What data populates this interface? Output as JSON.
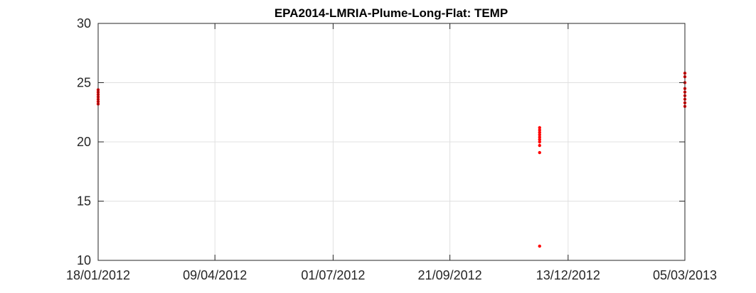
{
  "chart_data": {
    "type": "scatter",
    "title": "EPA2014-LMRIA-Plume-Long-Flat: TEMP",
    "xlabel": "",
    "ylabel": "",
    "x_type": "date",
    "xlim": [
      "2012-01-18",
      "2013-03-05"
    ],
    "ylim": [
      10,
      30
    ],
    "x_ticks": [
      "2012-01-18",
      "2012-04-09",
      "2012-07-01",
      "2012-09-21",
      "2012-12-13",
      "2013-03-05"
    ],
    "x_tick_labels": [
      "18/01/2012",
      "09/04/2012",
      "01/07/2012",
      "21/09/2012",
      "13/12/2012",
      "05/03/2013"
    ],
    "y_ticks": [
      10,
      15,
      20,
      25,
      30
    ],
    "y_tick_labels": [
      "10",
      "15",
      "20",
      "25",
      "30"
    ],
    "grid": true,
    "marker_color": "#ff0000",
    "series": [
      {
        "name": "TEMP",
        "points": [
          {
            "x": "2012-01-18",
            "y": 23.2
          },
          {
            "x": "2012-01-18",
            "y": 23.4
          },
          {
            "x": "2012-01-18",
            "y": 23.6
          },
          {
            "x": "2012-01-18",
            "y": 23.8
          },
          {
            "x": "2012-01-18",
            "y": 24.0
          },
          {
            "x": "2012-01-18",
            "y": 24.2
          },
          {
            "x": "2012-01-18",
            "y": 24.4
          },
          {
            "x": "2012-11-23",
            "y": 11.2
          },
          {
            "x": "2012-11-23",
            "y": 19.1
          },
          {
            "x": "2012-11-23",
            "y": 19.7
          },
          {
            "x": "2012-11-23",
            "y": 20.0
          },
          {
            "x": "2012-11-23",
            "y": 20.2
          },
          {
            "x": "2012-11-23",
            "y": 20.4
          },
          {
            "x": "2012-11-23",
            "y": 20.6
          },
          {
            "x": "2012-11-23",
            "y": 20.8
          },
          {
            "x": "2012-11-23",
            "y": 21.0
          },
          {
            "x": "2012-11-23",
            "y": 21.2
          },
          {
            "x": "2013-03-05",
            "y": 23.0
          },
          {
            "x": "2013-03-05",
            "y": 23.3
          },
          {
            "x": "2013-03-05",
            "y": 23.6
          },
          {
            "x": "2013-03-05",
            "y": 23.9
          },
          {
            "x": "2013-03-05",
            "y": 24.2
          },
          {
            "x": "2013-03-05",
            "y": 24.5
          },
          {
            "x": "2013-03-05",
            "y": 25.0
          },
          {
            "x": "2013-03-05",
            "y": 25.5
          },
          {
            "x": "2013-03-05",
            "y": 25.8
          }
        ]
      }
    ]
  }
}
